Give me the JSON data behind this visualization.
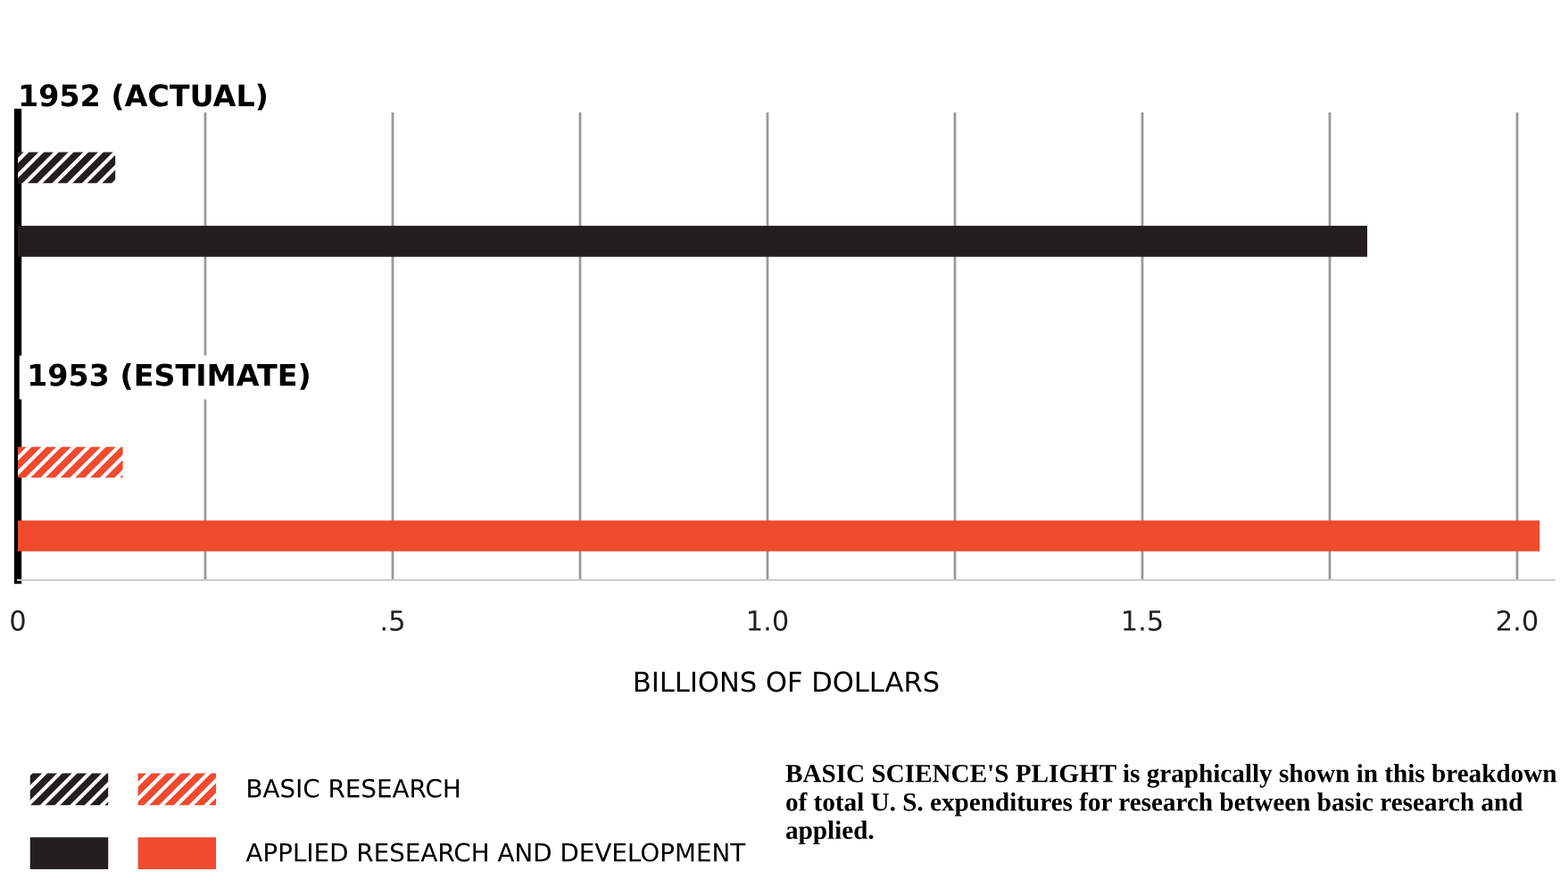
{
  "chart_data": {
    "type": "bar",
    "orientation": "horizontal",
    "title": "1952 (ACTUAL)",
    "xlabel": "BILLIONS OF DOLLARS",
    "categories": [
      null,
      null,
      null,
      null,
      null,
      null
    ],
    "series": [
      {
        "name": "BASIC RESEARCH",
        "colors": [
          "#231f20",
          null,
          null,
          null,
          "#f04a2f",
          null
        ],
        "values": [
          0.13,
          null,
          null,
          null,
          0.14,
          null
        ]
      },
      {
        "name": "APPLIED RESEARCH AND DEVELOPMENT",
        "colors": [
          null,
          "#231f20",
          null,
          null,
          null,
          "#f04a2f"
        ],
        "values": [
          null,
          1.8,
          null,
          null,
          null,
          2.03
        ]
      }
    ],
    "xlim": [
      0,
      2.05
    ],
    "xticks": [
      {
        "value": 0,
        "label": "0"
      },
      {
        "value": 0.25,
        "label": null
      },
      {
        "value": 0.5,
        "label": ".5"
      },
      {
        "value": 0.75,
        "label": null
      },
      {
        "value": 1.0,
        "label": "1.0"
      },
      {
        "value": 1.25,
        "label": null
      },
      {
        "value": 1.5,
        "label": "1.5"
      },
      {
        "value": 1.75,
        "label": null
      },
      {
        "value": 2.0,
        "label": "2.0"
      }
    ],
    "grid": "x",
    "legend": "bottom left",
    "annotations": [
      "1953 (ESTIMATE)",
      "BASIC SCIENCE'S PLIGHT is graphically shown in this breakdown of total U. S. expenditures for research between basic research and applied."
    ]
  }
}
